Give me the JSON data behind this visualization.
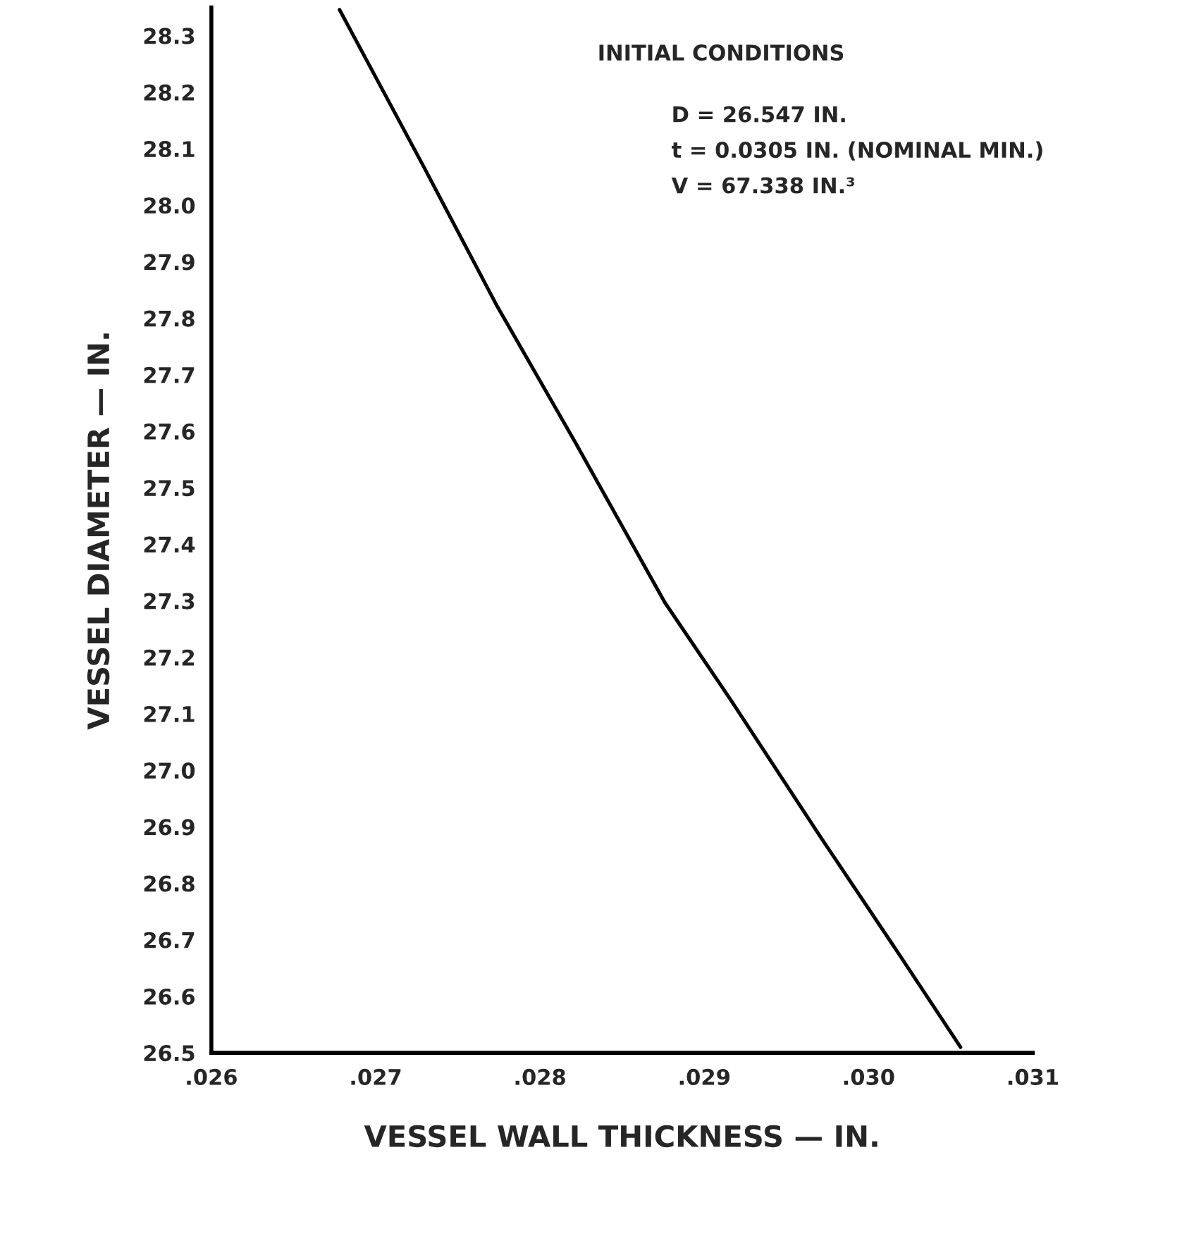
{
  "chart_data": {
    "type": "line",
    "xlabel": "VESSEL WALL THICKNESS — IN.",
    "ylabel": "VESSEL DIAMETER — IN.",
    "x": [
      0.02678,
      0.0273,
      0.02774,
      0.02821,
      0.02876,
      0.02916,
      0.02971,
      0.03015,
      0.03056
    ],
    "series": [
      {
        "color": "#000000",
        "values": [
          28.346,
          28.064,
          27.821,
          27.583,
          27.297,
          27.125,
          26.881,
          26.69,
          26.51
        ]
      }
    ],
    "xlim": [
      0.026,
      0.031
    ],
    "ylim": [
      26.5,
      28.35
    ],
    "xticks": [
      {
        "value": 0.026,
        "label": ".026"
      },
      {
        "value": 0.027,
        "label": ".027"
      },
      {
        "value": 0.028,
        "label": ".028"
      },
      {
        "value": 0.029,
        "label": ".029"
      },
      {
        "value": 0.03,
        "label": ".030"
      },
      {
        "value": 0.031,
        "label": ".031"
      }
    ],
    "yticks": [
      {
        "value": 26.5,
        "label": "26.5"
      },
      {
        "value": 26.6,
        "label": "26.6"
      },
      {
        "value": 26.7,
        "label": "26.7"
      },
      {
        "value": 26.8,
        "label": "26.8"
      },
      {
        "value": 26.9,
        "label": "26.9"
      },
      {
        "value": 27.0,
        "label": "27.0"
      },
      {
        "value": 27.1,
        "label": "27.1"
      },
      {
        "value": 27.2,
        "label": "27.2"
      },
      {
        "value": 27.3,
        "label": "27.3"
      },
      {
        "value": 27.4,
        "label": "27.4"
      },
      {
        "value": 27.5,
        "label": "27.5"
      },
      {
        "value": 27.6,
        "label": "27.6"
      },
      {
        "value": 27.7,
        "label": "27.7"
      },
      {
        "value": 27.8,
        "label": "27.8"
      },
      {
        "value": 27.9,
        "label": "27.9"
      },
      {
        "value": 28.0,
        "label": "28.0"
      },
      {
        "value": 28.1,
        "label": "28.1"
      },
      {
        "value": 28.2,
        "label": "28.2"
      },
      {
        "value": 28.3,
        "label": "28.3"
      }
    ],
    "grid": false,
    "marker": "none",
    "line_style": "solid",
    "annotations": [
      "INITIAL CONDITIONS",
      "D = 26.547 IN.",
      "t = 0.0305 IN. (NOMINAL MIN.)",
      "V = 67.338 IN.³"
    ]
  }
}
